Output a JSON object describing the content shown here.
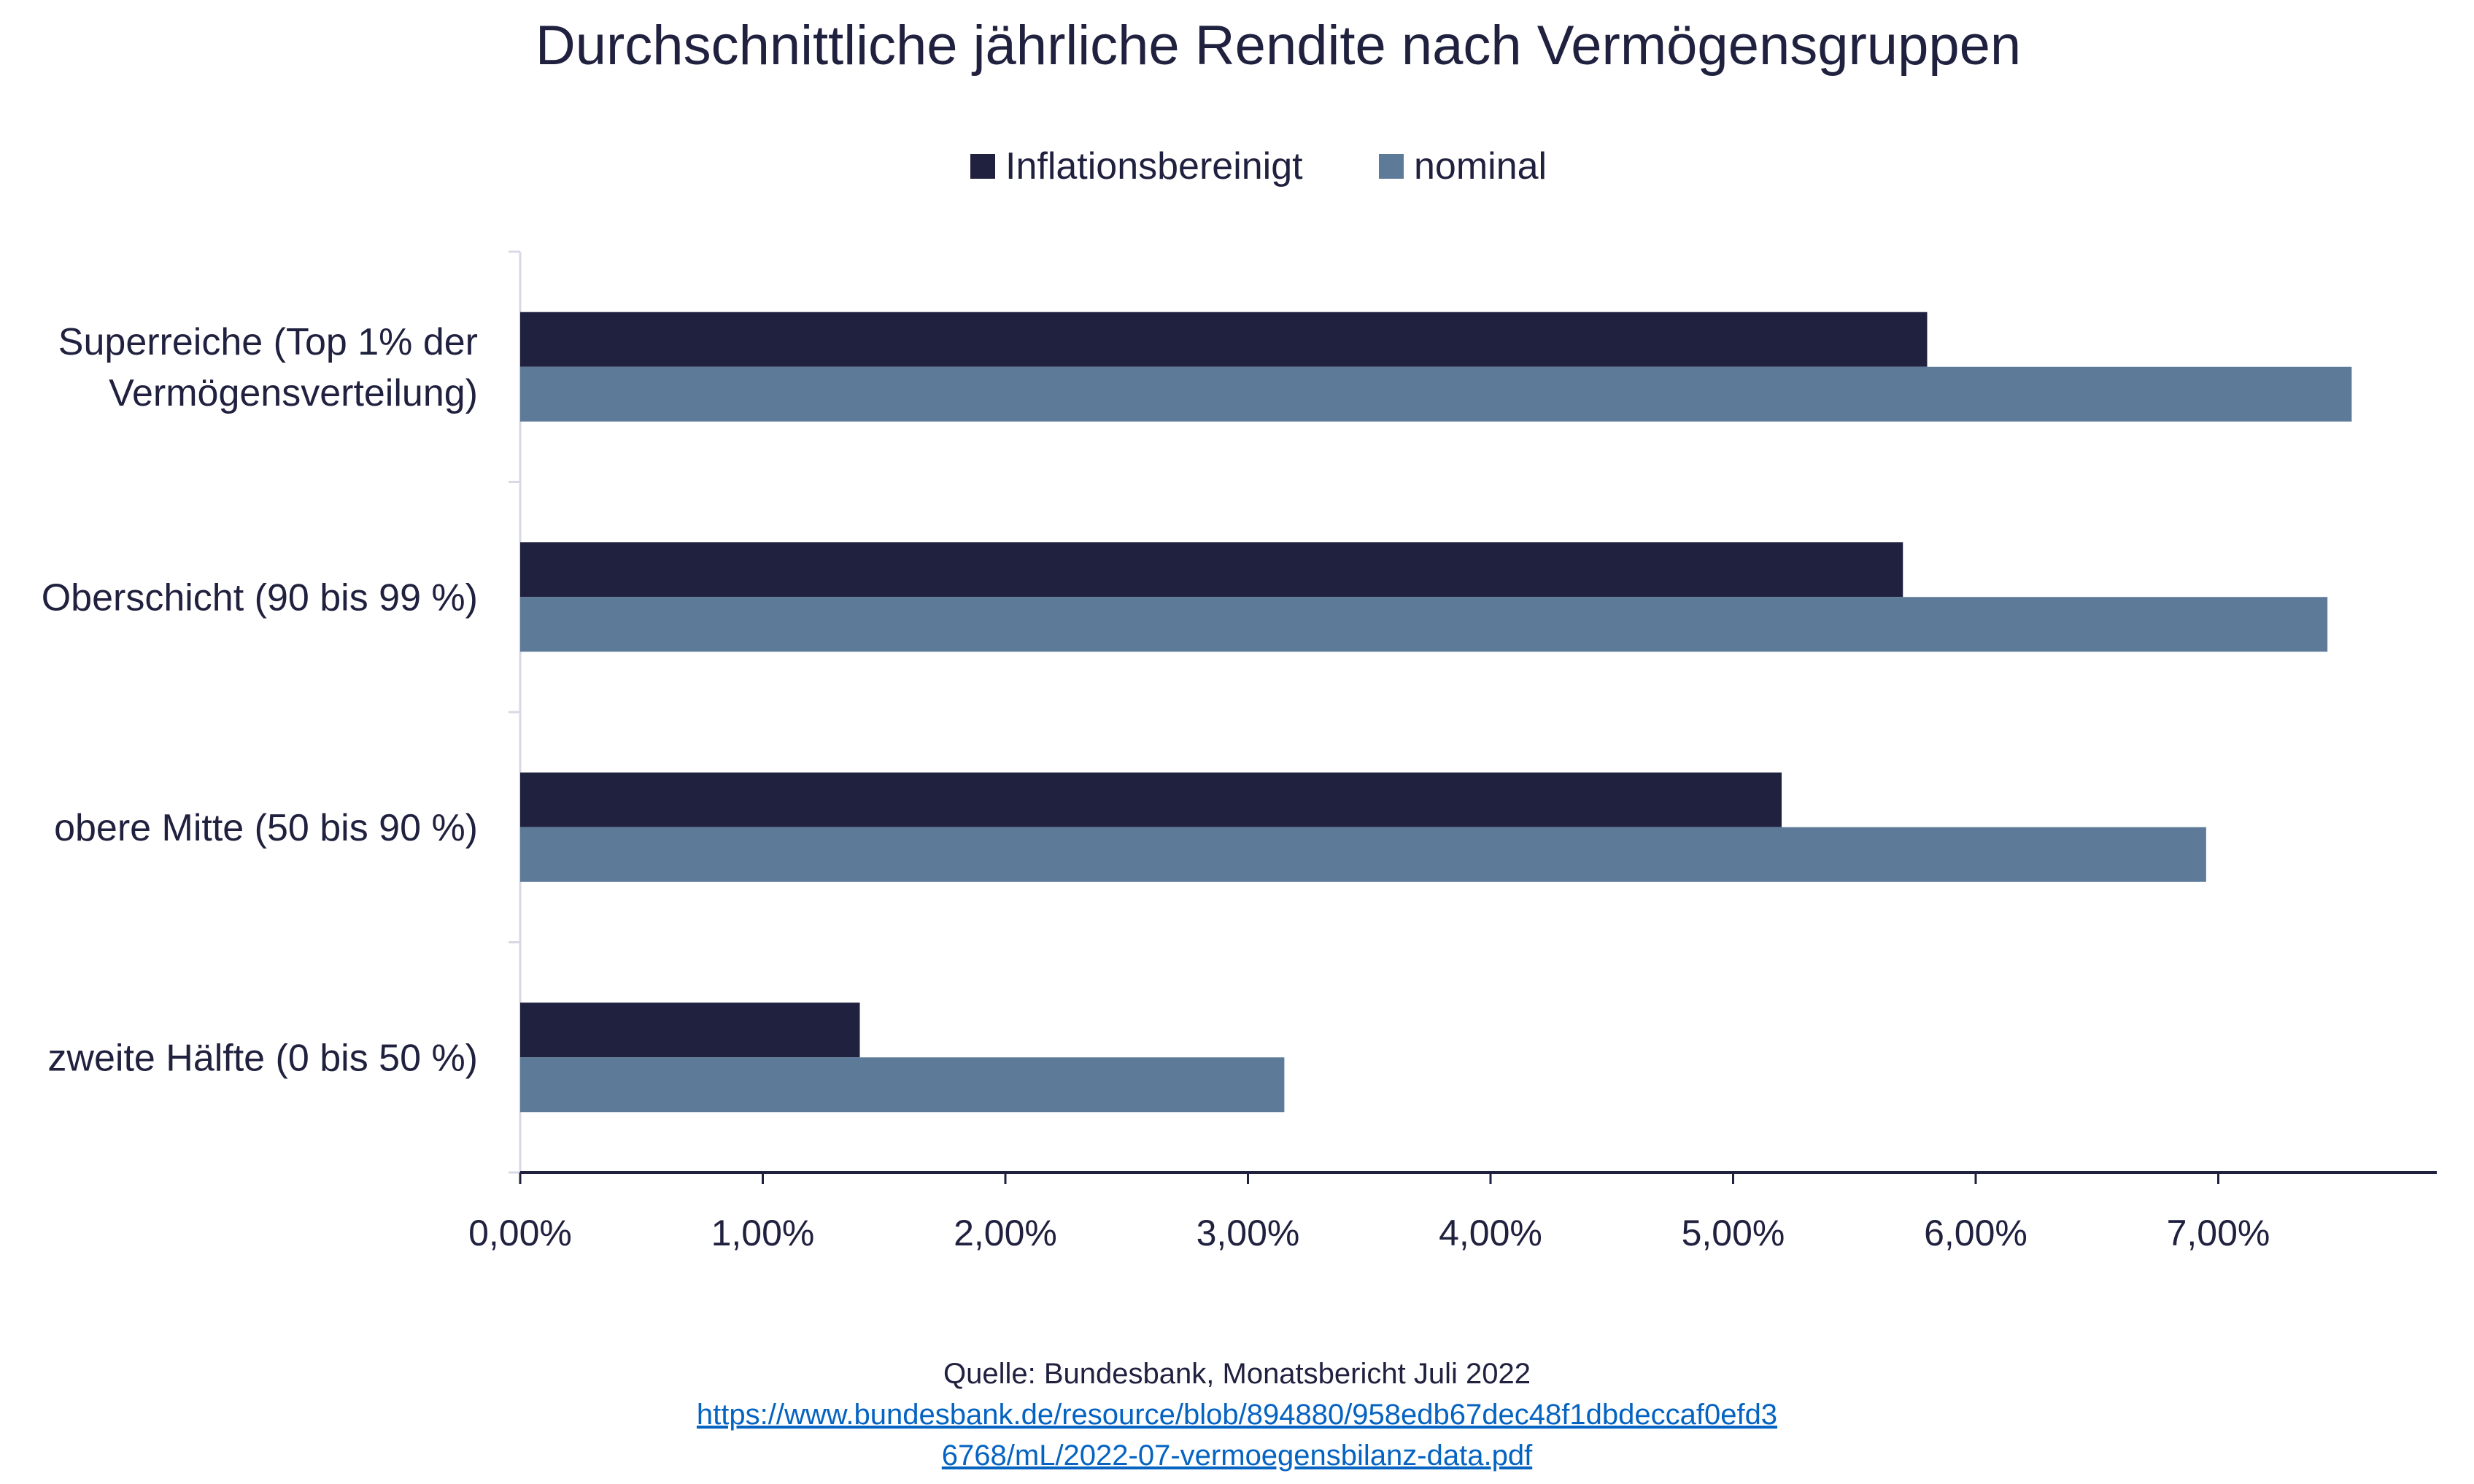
{
  "chart_data": {
    "type": "bar",
    "orientation": "horizontal",
    "title": "Durchschnittliche jährliche Rendite nach Vermögensgruppen",
    "categories": [
      "Superreiche (Top 1% der Vermögensverteilung)",
      "Oberschicht (90 bis 99 %)",
      "obere Mitte (50 bis 90 %)",
      "zweite Hälfte (0 bis 50 %)"
    ],
    "category_lines": [
      [
        "Superreiche (Top 1% der",
        "Vermögensverteilung)"
      ],
      [
        "Oberschicht (90 bis 99 %)"
      ],
      [
        "obere Mitte (50 bis 90 %)"
      ],
      [
        "zweite Hälfte (0 bis 50 %)"
      ]
    ],
    "series": [
      {
        "name": "Inflationsbereinigt",
        "color": "#20213f",
        "values": [
          5.8,
          5.7,
          5.2,
          1.4
        ]
      },
      {
        "name": "nominal",
        "color": "#5d7b99",
        "values": [
          7.55,
          7.45,
          6.95,
          3.15
        ]
      }
    ],
    "xlim": [
      0,
      7.9
    ],
    "xticks": [
      0,
      1,
      2,
      3,
      4,
      5,
      6,
      7
    ],
    "xtick_labels": [
      "0,00%",
      "1,00%",
      "2,00%",
      "3,00%",
      "4,00%",
      "5,00%",
      "6,00%",
      "7,00%"
    ],
    "xlabel": "",
    "ylabel": "",
    "grid": false,
    "legend_position": "top"
  },
  "source": {
    "label": "Quelle: Bundesbank, Monatsbericht Juli 2022",
    "link_line1": "https://www.bundesbank.de/resource/blob/894880/958edb67dec48f1dbdeccaf0efd3",
    "link_line2": "6768/mL/2022-07-vermoegensbilanz-data.pdf"
  }
}
